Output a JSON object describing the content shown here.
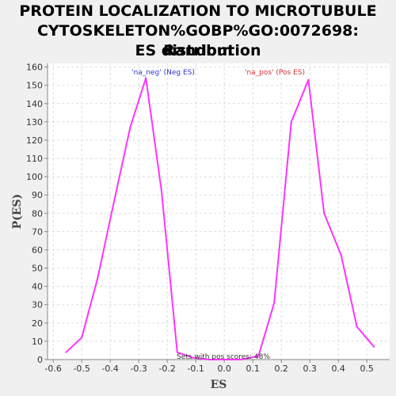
{
  "chart_data": {
    "type": "line",
    "title_lines": [
      "PROTEIN LOCALIZATION TO MICROTUBULE",
      "CYTOSKELETON%GOBP%GO:0072698: Random",
      "ES distribution"
    ],
    "xlabel": "ES",
    "ylabel": "P(ES)",
    "xlim": [
      -0.62,
      0.58
    ],
    "ylim": [
      0,
      162
    ],
    "xticks": [
      -0.6,
      -0.5,
      -0.4,
      -0.3,
      -0.2,
      -0.1,
      0.0,
      0.1,
      0.2,
      0.3,
      0.4,
      0.5
    ],
    "xtick_labels": [
      "-0.6",
      "-0.5",
      "-0.4",
      "-0.3",
      "-0.2",
      "-0.1",
      "0.0",
      "0.1",
      "0.2",
      "0.3",
      "0.4",
      "0.5"
    ],
    "yticks": [
      0,
      10,
      20,
      30,
      40,
      50,
      60,
      70,
      80,
      90,
      100,
      110,
      120,
      130,
      140,
      150,
      160
    ],
    "grid": true,
    "line_color": "#ff33ff",
    "series": [
      {
        "points": [
          [
            -0.555,
            4
          ],
          [
            -0.5,
            12
          ],
          [
            -0.445,
            44
          ],
          [
            -0.39,
            84
          ],
          [
            -0.33,
            127
          ],
          [
            -0.275,
            154
          ],
          [
            -0.22,
            92
          ],
          [
            -0.165,
            4
          ],
          [
            -0.11,
            1
          ],
          [
            -0.055,
            0
          ],
          [
            0.0,
            0
          ],
          [
            0.06,
            0
          ],
          [
            0.12,
            2
          ],
          [
            0.175,
            31
          ],
          [
            0.235,
            130
          ],
          [
            0.295,
            153
          ],
          [
            0.35,
            80
          ],
          [
            0.41,
            57
          ],
          [
            0.465,
            18
          ],
          [
            0.525,
            7
          ]
        ]
      }
    ],
    "legend": [
      {
        "text": "'na_neg' (Neg ES)",
        "color": "#3333cc"
      },
      {
        "text": "'na_pos' (Pos ES)",
        "color": "#cc3333"
      }
    ],
    "annotation": "Sets with pos scores: 48%"
  }
}
